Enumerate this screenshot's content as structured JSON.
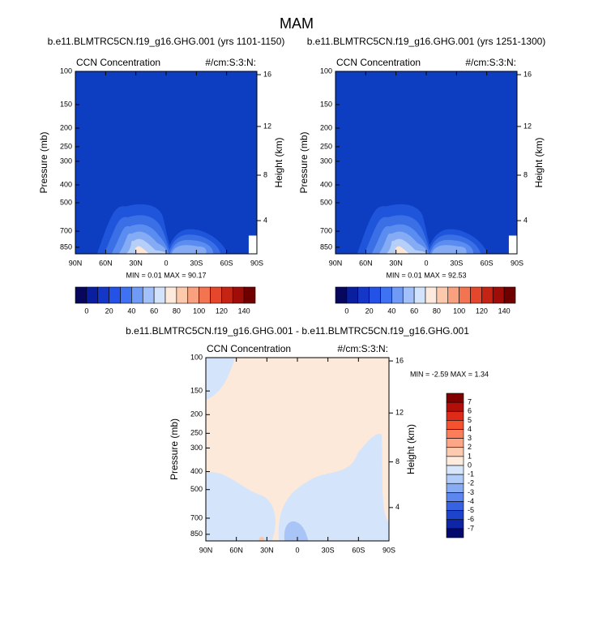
{
  "title": "MAM",
  "panels": [
    {
      "case": "b.e11.BLMTRC5CN.f19_g16.GHG.001 (yrs 1101-1150)",
      "left_label": "CCN Concentration",
      "right_label": "#/cm:S:3:N:",
      "y_label": "Pressure (mb)",
      "y2_label": "Height (km)",
      "yticks": [
        "100",
        "150",
        "200",
        "250",
        "300",
        "400",
        "500",
        "700",
        "850"
      ],
      "y2ticks": [
        "16",
        "12",
        "8",
        "4"
      ],
      "xticks": [
        "90N",
        "60N",
        "30N",
        "0",
        "30S",
        "60S",
        "90S"
      ],
      "stats": "MIN =  0.01   MAX = 90.17",
      "colorbar": [
        "0",
        "20",
        "40",
        "60",
        "80",
        "100",
        "120",
        "140"
      ]
    },
    {
      "case": "b.e11.BLMTRC5CN.f19_g16.GHG.001 (yrs 1251-1300)",
      "left_label": "CCN Concentration",
      "right_label": "#/cm:S:3:N:",
      "y_label": "Pressure (mb)",
      "y2_label": "Height (km)",
      "yticks": [
        "100",
        "150",
        "200",
        "250",
        "300",
        "400",
        "500",
        "700",
        "850"
      ],
      "y2ticks": [
        "16",
        "12",
        "8",
        "4"
      ],
      "xticks": [
        "90N",
        "60N",
        "30N",
        "0",
        "30S",
        "60S",
        "90S"
      ],
      "stats": "MIN =  0.01   MAX = 92.53",
      "colorbar": [
        "0",
        "20",
        "40",
        "60",
        "80",
        "100",
        "120",
        "140"
      ]
    }
  ],
  "diff": {
    "case": "b.e11.BLMTRC5CN.f19_g16.GHG.001 - b.e11.BLMTRC5CN.f19_g16.GHG.001",
    "left_label": "CCN Concentration",
    "right_label": "#/cm:S:3:N:",
    "y_label": "Pressure (mb)",
    "y2_label": "Height (km)",
    "yticks": [
      "100",
      "150",
      "200",
      "250",
      "300",
      "400",
      "500",
      "700",
      "850"
    ],
    "y2ticks": [
      "16",
      "12",
      "8",
      "4"
    ],
    "xticks": [
      "90N",
      "60N",
      "30N",
      "0",
      "30S",
      "60S",
      "90S"
    ],
    "stats": "MIN = -2.59  MAX =  1.34",
    "colorbar": [
      "7",
      "6",
      "5",
      "4",
      "3",
      "2",
      "1",
      "0",
      "-1",
      "-2",
      "-3",
      "-4",
      "-5",
      "-6",
      "-7"
    ]
  }
}
